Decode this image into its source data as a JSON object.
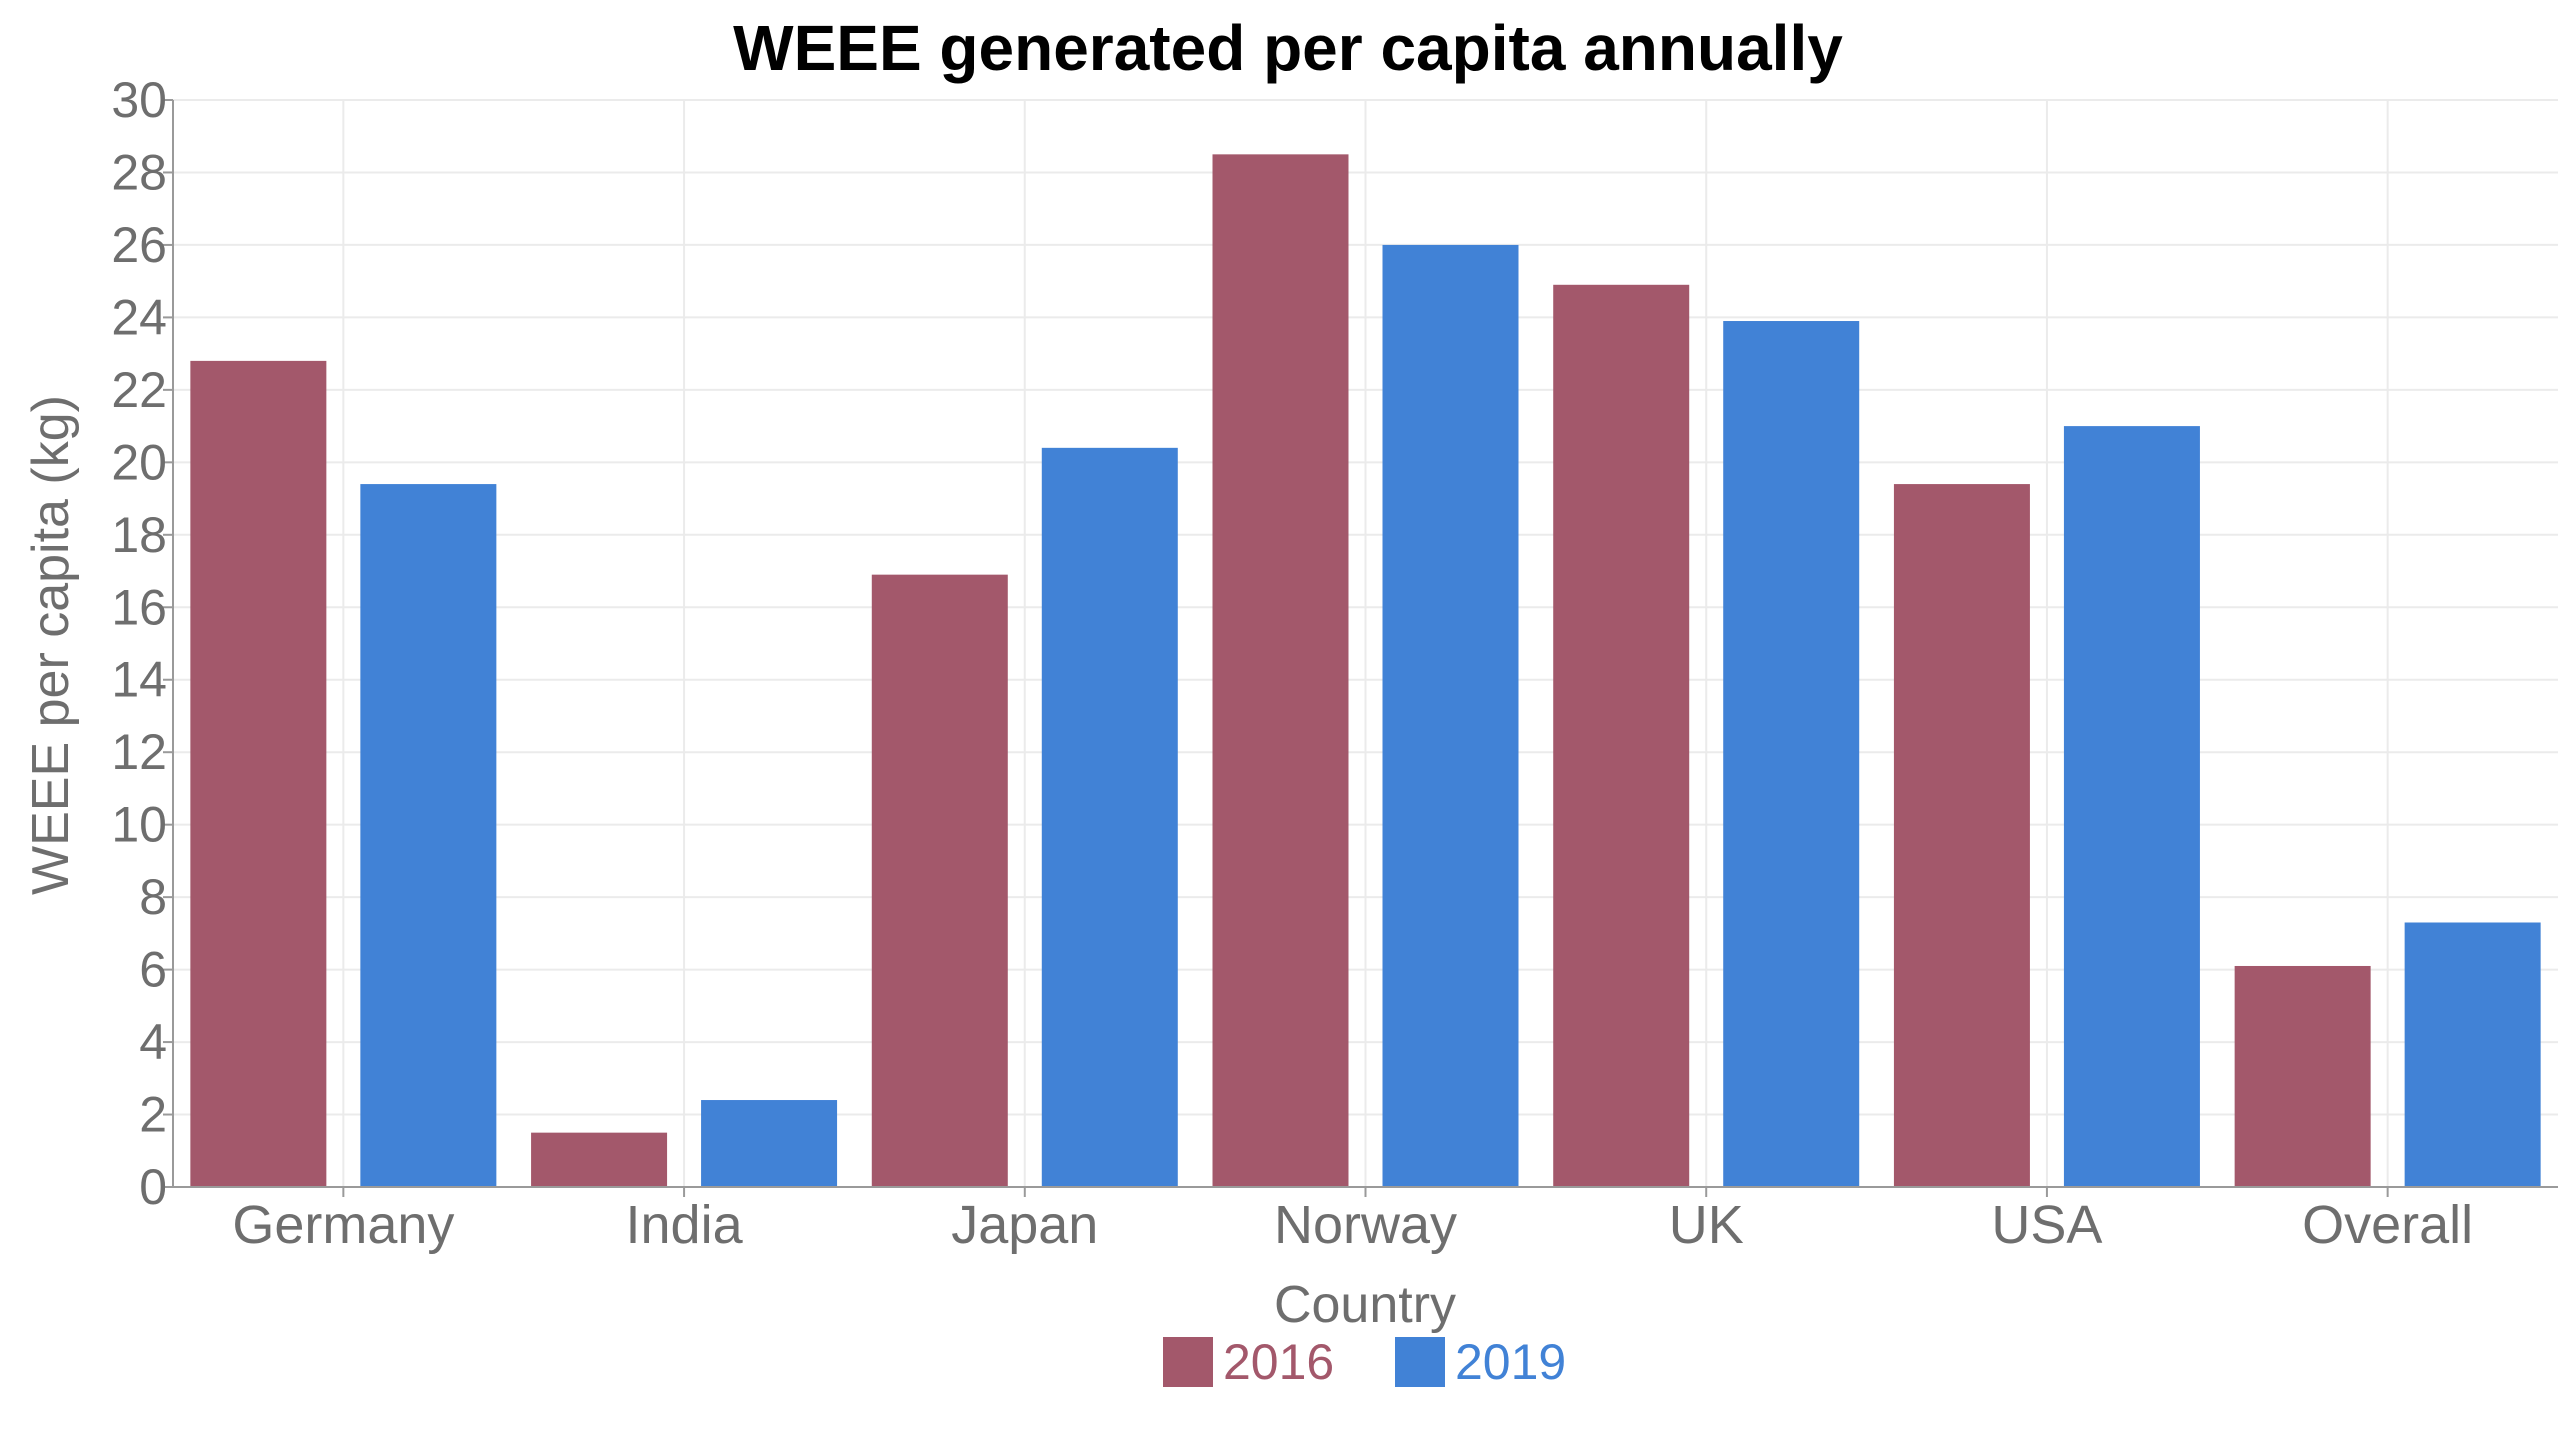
{
  "chart_data": {
    "type": "bar",
    "title": "WEEE generated per capita annually",
    "xlabel": "Country",
    "ylabel": "WEEE per capita (kg)",
    "categories": [
      "Germany",
      "India",
      "Japan",
      "Norway",
      "UK",
      "USA",
      "Overall"
    ],
    "series": [
      {
        "name": "2016",
        "color": "#A3586B",
        "values": [
          22.8,
          1.5,
          16.9,
          28.5,
          24.9,
          19.4,
          6.1
        ]
      },
      {
        "name": "2019",
        "color": "#4182D6",
        "values": [
          19.4,
          2.4,
          20.4,
          26.0,
          23.9,
          21.0,
          7.3
        ]
      }
    ],
    "ylim": [
      0,
      30
    ],
    "yticks": [
      0,
      2,
      4,
      6,
      8,
      10,
      12,
      14,
      16,
      18,
      20,
      22,
      24,
      26,
      28,
      30
    ],
    "grid": true,
    "legend_position": "bottom-center",
    "colors": {
      "tick_text": "#6E6E6E",
      "grid": "#EBEBEB",
      "axis_line": "#9A9A9A"
    }
  }
}
